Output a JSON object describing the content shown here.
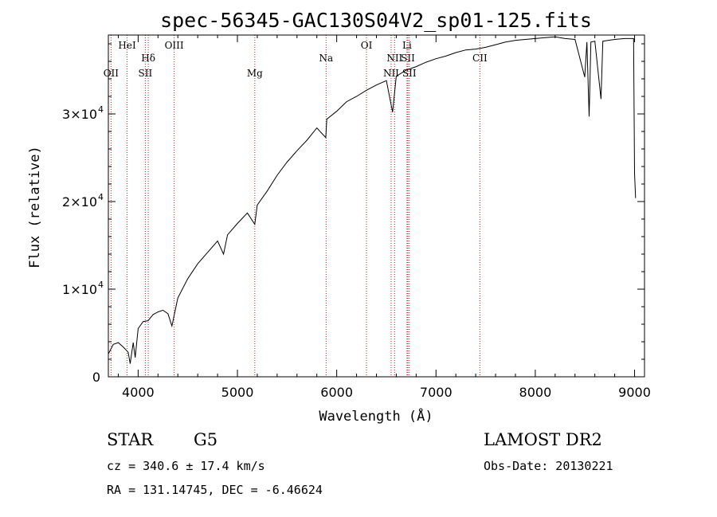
{
  "chart_data": {
    "type": "line",
    "title": "spec-56345-GAC130S04V2_sp01-125.fits",
    "xlabel": "Wavelength (Å)",
    "ylabel": "Flux (relative)",
    "xlim": [
      3700,
      9100
    ],
    "ylim": [
      0,
      39000
    ],
    "x_ticks": [
      {
        "v": 4000,
        "label": "4000"
      },
      {
        "v": 5000,
        "label": "5000"
      },
      {
        "v": 6000,
        "label": "6000"
      },
      {
        "v": 7000,
        "label": "7000"
      },
      {
        "v": 8000,
        "label": "8000"
      },
      {
        "v": 9000,
        "label": "9000"
      }
    ],
    "y_ticks": [
      {
        "v": 0,
        "mant": "0",
        "exp": ""
      },
      {
        "v": 10000,
        "mant": "1×10",
        "exp": "4"
      },
      {
        "v": 20000,
        "mant": "2×10",
        "exp": "4"
      },
      {
        "v": 30000,
        "mant": "3×10",
        "exp": "4"
      }
    ],
    "grid": false,
    "series": [
      {
        "color": "#000000",
        "points": [
          [
            3700,
            2600
          ],
          [
            3750,
            3700
          ],
          [
            3800,
            3900
          ],
          [
            3850,
            3400
          ],
          [
            3900,
            2800
          ],
          [
            3920,
            1500
          ],
          [
            3950,
            3900
          ],
          [
            3970,
            2200
          ],
          [
            4000,
            5500
          ],
          [
            4050,
            6300
          ],
          [
            4100,
            6400
          ],
          [
            4150,
            7100
          ],
          [
            4200,
            7400
          ],
          [
            4250,
            7600
          ],
          [
            4300,
            7200
          ],
          [
            4340,
            5800
          ],
          [
            4400,
            9000
          ],
          [
            4500,
            11200
          ],
          [
            4600,
            12900
          ],
          [
            4700,
            14200
          ],
          [
            4800,
            15500
          ],
          [
            4860,
            14000
          ],
          [
            4900,
            16200
          ],
          [
            5000,
            17500
          ],
          [
            5100,
            18700
          ],
          [
            5175,
            17400
          ],
          [
            5200,
            19600
          ],
          [
            5300,
            21200
          ],
          [
            5400,
            23000
          ],
          [
            5500,
            24500
          ],
          [
            5600,
            25800
          ],
          [
            5700,
            27000
          ],
          [
            5800,
            28400
          ],
          [
            5890,
            27300
          ],
          [
            5900,
            29400
          ],
          [
            6000,
            30300
          ],
          [
            6100,
            31400
          ],
          [
            6200,
            32000
          ],
          [
            6300,
            32700
          ],
          [
            6400,
            33300
          ],
          [
            6500,
            33800
          ],
          [
            6563,
            30200
          ],
          [
            6600,
            34300
          ],
          [
            6700,
            35000
          ],
          [
            6800,
            35400
          ],
          [
            6900,
            35900
          ],
          [
            7000,
            36300
          ],
          [
            7100,
            36600
          ],
          [
            7200,
            37000
          ],
          [
            7300,
            37300
          ],
          [
            7400,
            37400
          ],
          [
            7500,
            37600
          ],
          [
            7600,
            37900
          ],
          [
            7700,
            38200
          ],
          [
            7800,
            38400
          ],
          [
            7900,
            38500
          ],
          [
            8000,
            38600
          ],
          [
            8100,
            38700
          ],
          [
            8200,
            38800
          ],
          [
            8300,
            38600
          ],
          [
            8400,
            38500
          ],
          [
            8498,
            34200
          ],
          [
            8520,
            38200
          ],
          [
            8542,
            29700
          ],
          [
            8560,
            38200
          ],
          [
            8600,
            38300
          ],
          [
            8662,
            31700
          ],
          [
            8680,
            38300
          ],
          [
            8800,
            38500
          ],
          [
            8900,
            38600
          ],
          [
            8990,
            38600
          ],
          [
            9000,
            23200
          ],
          [
            9010,
            20400
          ]
        ]
      }
    ],
    "lines": [
      {
        "w": 3727,
        "label": "OII",
        "row": 3
      },
      {
        "w": 3889,
        "label": "HeI",
        "row": 1
      },
      {
        "w": 4072,
        "label": "SII",
        "row": 3
      },
      {
        "w": 4102,
        "label": "Hδ",
        "row": 2
      },
      {
        "w": 4363,
        "label": "OIII",
        "row": 1
      },
      {
        "w": 5175,
        "label": "Mg",
        "row": 3
      },
      {
        "w": 5893,
        "label": "Na",
        "row": 2
      },
      {
        "w": 6300,
        "label": "OI",
        "row": 1
      },
      {
        "w": 6548,
        "label": "NII",
        "row": 3
      },
      {
        "w": 6583,
        "label": "NII",
        "row": 2
      },
      {
        "w": 6708,
        "label": "Li",
        "row": 1
      },
      {
        "w": 6717,
        "label": "SII",
        "row": 2
      },
      {
        "w": 6731,
        "label": "SII",
        "row": 3
      },
      {
        "w": 7442,
        "label": "CII",
        "row": 2
      }
    ]
  },
  "footer": {
    "object_class": "STAR",
    "subclass": "G5",
    "survey": "LAMOST DR2",
    "cz": "cz = 340.6 ± 17.4 km/s",
    "obs_date": "Obs-Date: 20130221",
    "coords": "RA = 131.14745, DEC =  -6.46624"
  }
}
